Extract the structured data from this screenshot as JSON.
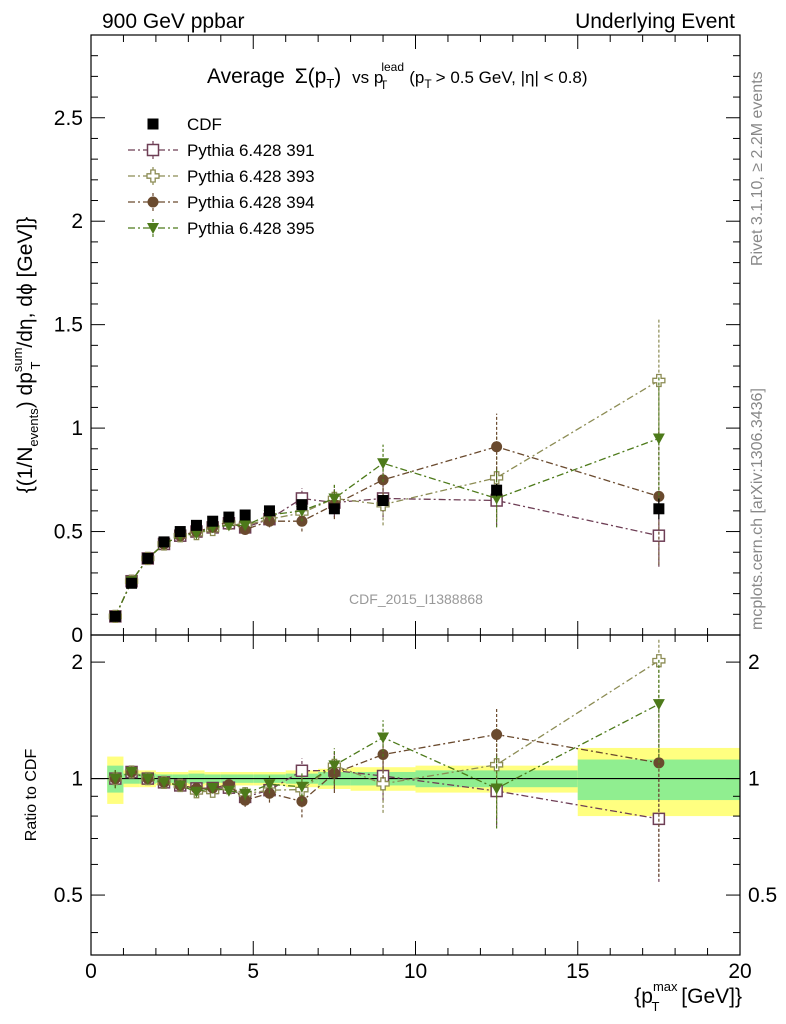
{
  "header": {
    "left_label": "900 GeV ppbar",
    "right_label": "Underlying Event"
  },
  "side_labels": {
    "rivet": "Rivet 3.1.10, ≥ 2.2M events",
    "mcplots": "mcplots.cern.ch [arXiv:1306.3436]"
  },
  "title": {
    "prefix": "Average",
    "sigma": "Σ(p",
    "sub_t": "T",
    "close": ")",
    "vs": "vs p",
    "sup_lead": "lead",
    "sub_t2": "T",
    "cuts_open": "(p",
    "sub_t3": "T",
    "cuts_rest": "> 0.5 GeV, |η| < 0.8)"
  },
  "analysis_id": "CDF_2015_I1388868",
  "axes": {
    "y_main_label": {
      "p1": "{(1/N",
      "sub_events": "events",
      "p2": ") dp",
      "sup_sum": "sum",
      "sub_t": "T",
      "p3": "/dη, dϕ [GeV]}"
    },
    "y_ratio_label": "Ratio to CDF",
    "x_label": {
      "p1": "{p",
      "sup_max": "max",
      "sub_t": "T",
      "p2": " [GeV]}"
    },
    "x_ticks": [
      "0",
      "5",
      "10",
      "15",
      "20"
    ],
    "y_main_ticks": [
      "0",
      "0.5",
      "1",
      "1.5",
      "2",
      "2.5"
    ],
    "y_ratio_ticks": [
      "0.5",
      "1",
      "2"
    ]
  },
  "colors": {
    "cdf": "#000000",
    "p391": "#6e3e55",
    "p393": "#8c8c54",
    "p394": "#6a4a2e",
    "p395": "#4d7a1a",
    "band_outer": "#ffff80",
    "band_inner": "#90ee90",
    "ref_label": "#999999"
  },
  "chart_data": {
    "type": "scatter",
    "xlim": [
      0,
      20
    ],
    "ylim_main": [
      0,
      2.9
    ],
    "ylim_ratio": [
      0.35,
      2.35
    ],
    "y_ratio_scale": "log",
    "legend_placement": "top-left",
    "bins": [
      [
        0.5,
        1
      ],
      [
        1,
        1.5
      ],
      [
        1.5,
        2
      ],
      [
        2,
        2.5
      ],
      [
        2.5,
        3
      ],
      [
        3,
        3.5
      ],
      [
        3.5,
        4
      ],
      [
        4,
        4.5
      ],
      [
        4.5,
        5
      ],
      [
        5,
        6
      ],
      [
        6,
        7
      ],
      [
        7,
        8
      ],
      [
        8,
        10
      ],
      [
        10,
        15
      ],
      [
        15,
        20
      ]
    ],
    "x": [
      0.75,
      1.25,
      1.75,
      2.25,
      2.75,
      3.25,
      3.75,
      4.25,
      4.75,
      5.5,
      6.5,
      7.5,
      9,
      12.5,
      17.5
    ],
    "series": [
      {
        "name": "CDF",
        "key": "cdf",
        "marker": "square-filled",
        "values": [
          0.09,
          0.25,
          0.37,
          0.45,
          0.5,
          0.53,
          0.55,
          0.57,
          0.58,
          0.6,
          0.63,
          0.61,
          0.65,
          0.7,
          0.61
        ],
        "errors": [
          0.005,
          0.005,
          0.006,
          0.007,
          0.008,
          0.009,
          0.009,
          0.01,
          0.011,
          0.012,
          0.015,
          0.018,
          0.02,
          0.03,
          0.05
        ],
        "band_outer": [
          0.14,
          0.05,
          0.05,
          0.04,
          0.04,
          0.05,
          0.04,
          0.04,
          0.04,
          0.04,
          0.05,
          0.06,
          0.07,
          0.08,
          0.2
        ],
        "band_inner": [
          0.08,
          0.03,
          0.03,
          0.025,
          0.025,
          0.03,
          0.025,
          0.025,
          0.025,
          0.025,
          0.03,
          0.04,
          0.04,
          0.05,
          0.12
        ]
      },
      {
        "name": "Pythia 6.428 391",
        "key": "p391",
        "marker": "square-open",
        "values": [
          0.09,
          0.26,
          0.37,
          0.44,
          0.48,
          0.5,
          0.52,
          0.54,
          0.52,
          0.56,
          0.66,
          0.64,
          0.66,
          0.65,
          0.48
        ],
        "errors": [
          0.005,
          0.005,
          0.006,
          0.007,
          0.008,
          0.01,
          0.012,
          0.015,
          0.02,
          0.03,
          0.05,
          0.07,
          0.09,
          0.12,
          0.15
        ]
      },
      {
        "name": "Pythia 6.428 393",
        "key": "p393",
        "marker": "cross-open",
        "values": [
          0.09,
          0.26,
          0.37,
          0.44,
          0.48,
          0.49,
          0.51,
          0.54,
          0.53,
          0.56,
          0.59,
          0.66,
          0.63,
          0.76,
          1.23
        ],
        "errors": [
          0.005,
          0.005,
          0.006,
          0.007,
          0.008,
          0.01,
          0.012,
          0.015,
          0.02,
          0.03,
          0.05,
          0.07,
          0.1,
          0.2,
          0.3
        ]
      },
      {
        "name": "Pythia 6.428 394",
        "key": "p394",
        "marker": "circle-filled",
        "values": [
          0.09,
          0.26,
          0.37,
          0.44,
          0.48,
          0.5,
          0.52,
          0.55,
          0.51,
          0.55,
          0.55,
          0.63,
          0.75,
          0.91,
          0.67
        ],
        "errors": [
          0.005,
          0.005,
          0.006,
          0.007,
          0.008,
          0.01,
          0.012,
          0.015,
          0.02,
          0.03,
          0.05,
          0.07,
          0.1,
          0.16,
          0.33
        ]
      },
      {
        "name": "Pythia 6.428 395",
        "key": "p395",
        "marker": "triangle-down-filled",
        "values": [
          0.09,
          0.26,
          0.37,
          0.44,
          0.48,
          0.49,
          0.52,
          0.53,
          0.53,
          0.58,
          0.6,
          0.66,
          0.83,
          0.66,
          0.95
        ],
        "errors": [
          0.005,
          0.005,
          0.006,
          0.007,
          0.008,
          0.01,
          0.012,
          0.015,
          0.02,
          0.03,
          0.05,
          0.07,
          0.09,
          0.14,
          0.3
        ]
      }
    ]
  }
}
